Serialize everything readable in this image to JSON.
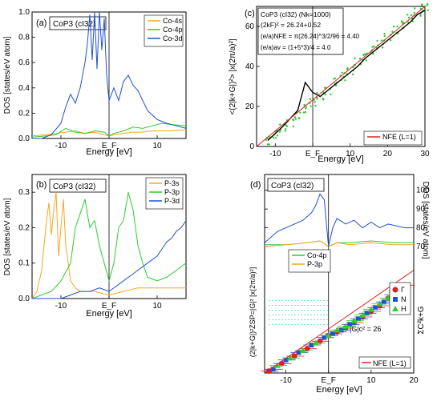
{
  "colors": {
    "orange": "#f5a623",
    "green": "#2ecc2e",
    "blue": "#1f4fd6",
    "black": "#000000",
    "red": "#e02020",
    "cyan": "#33c4e0"
  },
  "chart_data": [
    {
      "panel": "(a)",
      "type": "line",
      "tag": "CoP3 (cI32)",
      "xlabel": "Energy [eV]",
      "ylabel": "DOS [states/eV atom]",
      "xlim": [
        -16,
        16
      ],
      "ylim": [
        0,
        1.0
      ],
      "xticks": [
        -10,
        0,
        10
      ],
      "xtick_labels": [
        "-10",
        "E_F",
        "10"
      ],
      "yticks": [
        0,
        0.2,
        0.4,
        0.6,
        0.8,
        1.0
      ],
      "ytick_labels": [
        "0.0",
        "0.2",
        "0.4",
        "0.6",
        "0.8",
        "1.0"
      ],
      "legend": "top-right",
      "series": [
        {
          "name": "Co-4s",
          "color": "#f5a623",
          "x": [
            -16,
            -13,
            -11,
            -9,
            -7,
            -5,
            -3,
            -1,
            0,
            1,
            3,
            5,
            7,
            9,
            11,
            13,
            16
          ],
          "y": [
            0.02,
            0.03,
            0.04,
            0.05,
            0.06,
            0.04,
            0.05,
            0.03,
            0.02,
            0.03,
            0.04,
            0.05,
            0.05,
            0.06,
            0.06,
            0.06,
            0.07
          ]
        },
        {
          "name": "Co-4p",
          "color": "#2ecc2e",
          "x": [
            -16,
            -13,
            -11,
            -9,
            -7,
            -5,
            -3,
            -1,
            0,
            1,
            3,
            5,
            7,
            9,
            11,
            13,
            16
          ],
          "y": [
            0.01,
            0.02,
            0.03,
            0.08,
            0.05,
            0.04,
            0.06,
            0.05,
            0.02,
            0.04,
            0.06,
            0.09,
            0.08,
            0.1,
            0.12,
            0.11,
            0.1
          ]
        },
        {
          "name": "Co-3d",
          "color": "#1f4fd6",
          "x": [
            -16,
            -14,
            -12,
            -10,
            -9,
            -8,
            -7,
            -6,
            -5,
            -4.5,
            -4,
            -3.5,
            -3,
            -2.5,
            -2,
            -1.5,
            -1,
            -0.5,
            0,
            0.5,
            1,
            2,
            3,
            4,
            5,
            6,
            7,
            8,
            10,
            12,
            14,
            16
          ],
          "y": [
            0.0,
            0.0,
            0.03,
            0.12,
            0.25,
            0.35,
            0.28,
            0.4,
            0.6,
            0.75,
            0.98,
            0.62,
            1.0,
            0.55,
            1.0,
            0.7,
            0.95,
            0.5,
            0.3,
            0.35,
            0.4,
            0.3,
            0.45,
            0.5,
            0.42,
            0.38,
            0.3,
            0.22,
            0.15,
            0.12,
            0.1,
            0.08
          ]
        }
      ]
    },
    {
      "panel": "(b)",
      "type": "line",
      "tag": "CoP3 (cI32)",
      "xlabel": "Energy [eV]",
      "ylabel": "DOS [states/eV atom]",
      "xlim": [
        -16,
        16
      ],
      "ylim": [
        0,
        0.35
      ],
      "xticks": [
        -10,
        0,
        10
      ],
      "xtick_labels": [
        "-10",
        "E_F",
        "10"
      ],
      "yticks": [
        0,
        0.1,
        0.2,
        0.3
      ],
      "ytick_labels": [
        "0.0",
        "0.1",
        "0.2",
        "0.3"
      ],
      "legend": "top-right",
      "series": [
        {
          "name": "P-3s",
          "color": "#f5a623",
          "x": [
            -16,
            -15,
            -14,
            -13.5,
            -13,
            -12.5,
            -12,
            -11.5,
            -11,
            -10.5,
            -10,
            -9.5,
            -9,
            -8.5,
            -8,
            -7,
            -6,
            -5,
            -3,
            0,
            3,
            6,
            9,
            12,
            16
          ],
          "y": [
            0.0,
            0.02,
            0.08,
            0.15,
            0.22,
            0.27,
            0.18,
            0.25,
            0.3,
            0.12,
            0.2,
            0.28,
            0.15,
            0.1,
            0.05,
            0.03,
            0.02,
            0.02,
            0.02,
            0.01,
            0.02,
            0.03,
            0.03,
            0.03,
            0.03
          ]
        },
        {
          "name": "P-3p",
          "color": "#2ecc2e",
          "x": [
            -16,
            -12,
            -10,
            -8,
            -7,
            -6,
            -5,
            -4,
            -3,
            -2,
            -1,
            0,
            1,
            2,
            3,
            4,
            5,
            6,
            7,
            8,
            10,
            12,
            14,
            16
          ],
          "y": [
            0.0,
            0.02,
            0.05,
            0.1,
            0.2,
            0.24,
            0.28,
            0.2,
            0.22,
            0.15,
            0.1,
            0.05,
            0.1,
            0.2,
            0.22,
            0.3,
            0.25,
            0.15,
            0.1,
            0.06,
            0.05,
            0.06,
            0.08,
            0.1
          ]
        },
        {
          "name": "P-3d",
          "color": "#1f4fd6",
          "x": [
            -16,
            -12,
            -10,
            -8,
            -6,
            -4,
            -2,
            0,
            2,
            4,
            6,
            8,
            10,
            11,
            12,
            13,
            14,
            15,
            16
          ],
          "y": [
            0.0,
            0.0,
            0.0,
            0.01,
            0.02,
            0.02,
            0.03,
            0.02,
            0.04,
            0.06,
            0.08,
            0.1,
            0.12,
            0.14,
            0.16,
            0.17,
            0.19,
            0.2,
            0.22
          ]
        }
      ]
    },
    {
      "panel": "(c)",
      "type": "scatter",
      "xlabel": "Energy [eV]",
      "ylabel": "<(2|k+G|)²> [x(2π/a)²]",
      "xlim": [
        -15,
        30
      ],
      "ylim": [
        0,
        70
      ],
      "xticks": [
        -10,
        0,
        10,
        20,
        30
      ],
      "xtick_labels": [
        "-10",
        "E_F",
        "10",
        "20",
        "30"
      ],
      "yticks": [
        0,
        20,
        40,
        60
      ],
      "ytick_labels": [
        "0",
        "20",
        "40",
        "60"
      ],
      "annotations": [
        "CoP3 (cI32) (Nk=1000)",
        "(2kF)² = 26.24+0.52",
        "(e/a)NFE = π(26.24)^3/2/96 = 4.40",
        "(e/a)av = (1+5*3)/4 = 4.0"
      ],
      "legend": "bottom-right",
      "series": [
        {
          "name": "",
          "color": "#2ecc2e",
          "kind": "points",
          "x": [
            -12,
            -10,
            -8,
            -6,
            -4,
            -2,
            0,
            2,
            4,
            6,
            8,
            10,
            12,
            14,
            16,
            18,
            20,
            22,
            24,
            26,
            28,
            30
          ],
          "y": [
            3,
            6,
            9,
            12,
            15,
            19,
            22,
            25,
            28,
            32,
            35,
            38,
            42,
            45,
            48,
            51,
            55,
            58,
            61,
            64,
            67,
            70
          ]
        },
        {
          "name": "",
          "color": "#000000",
          "kind": "line",
          "x": [
            -12,
            -8,
            -6,
            -4,
            -2,
            0,
            2,
            4,
            6,
            8,
            10,
            12,
            14,
            16,
            18,
            20,
            22,
            24,
            26,
            28,
            30
          ],
          "y": [
            3,
            10,
            14,
            18,
            32,
            27,
            25,
            28,
            31,
            34,
            37,
            40,
            44,
            47,
            50,
            53,
            56,
            59,
            62,
            66,
            68
          ]
        },
        {
          "name": "NFE (L=1)",
          "color": "#e02020",
          "kind": "line",
          "x": [
            -15,
            30
          ],
          "y": [
            0,
            70
          ]
        }
      ]
    },
    {
      "panel": "(d)",
      "type": "line",
      "tag": "CoP3 (cI32)",
      "xlabel": "Energy [eV]",
      "ylabel": "(2|k+G|)²ZSP=|G|² [x(2π/a)²]",
      "ylabel_right_top": "DOS [states/eV atom]",
      "ylabel_right_bottom": "ΣC²k+G",
      "xlim": [
        -15,
        20
      ],
      "ylim": [
        0,
        105
      ],
      "xticks": [
        -10,
        0,
        10,
        20
      ],
      "xtick_labels": [
        "-10",
        "E_F",
        "10",
        "20"
      ],
      "yticks": [
        70,
        80,
        90,
        100
      ],
      "ytick_labels": [
        "70",
        "80",
        "90",
        "100"
      ],
      "annotation": "|G|c² = 26",
      "legend_top": [
        "Co-4p",
        "P-3p"
      ],
      "legend_markers": [
        "Γ",
        "N",
        "H"
      ],
      "legend_bottom": "NFE (L=1)",
      "series": [
        {
          "name": "Co-4p",
          "color": "#2ecc2e",
          "x": [
            -15,
            -10,
            -5,
            -2,
            0,
            2,
            5,
            10,
            15,
            20
          ],
          "y": [
            71,
            71,
            72,
            73,
            70,
            72,
            72,
            73,
            72,
            72
          ]
        },
        {
          "name": "P-3p",
          "color": "#f5a623",
          "x": [
            -15,
            -10,
            -5,
            -2,
            0,
            2,
            5,
            10,
            15,
            20
          ],
          "y": [
            70,
            71,
            72,
            73,
            70,
            72,
            71,
            72,
            71,
            71
          ]
        },
        {
          "name": "",
          "color": "#1f4fd6",
          "x": [
            -15,
            -12,
            -10,
            -8,
            -6,
            -4,
            -3,
            -2,
            -1,
            0,
            1,
            2,
            4,
            6,
            8,
            10,
            12,
            14,
            16,
            18,
            20
          ],
          "y": [
            72,
            78,
            80,
            82,
            84,
            88,
            92,
            98,
            95,
            70,
            80,
            85,
            82,
            84,
            80,
            83,
            80,
            82,
            81,
            80,
            80
          ]
        },
        {
          "name": "Γ",
          "color": "#e02020",
          "kind": "points",
          "x": [
            -14,
            -11,
            -8,
            -5,
            -2,
            0,
            2,
            4,
            6,
            8,
            10,
            12,
            14,
            16,
            18
          ],
          "y": [
            1,
            5,
            9,
            13,
            17,
            20,
            22,
            24,
            27,
            30,
            33,
            36,
            40,
            44,
            47
          ]
        },
        {
          "name": "N",
          "color": "#1f4fd6",
          "kind": "points",
          "x": [
            -13,
            -10,
            -7,
            -4,
            -1,
            1,
            3,
            5,
            7,
            9,
            11,
            13,
            15,
            17
          ],
          "y": [
            2,
            7,
            11,
            15,
            19,
            21,
            23,
            26,
            29,
            32,
            35,
            38,
            42,
            45
          ]
        },
        {
          "name": "H",
          "color": "#2ecc2e",
          "kind": "points",
          "x": [
            -12,
            -9,
            -6,
            -3,
            0,
            2,
            4,
            6,
            8,
            10,
            12,
            14,
            16
          ],
          "y": [
            4,
            8,
            12,
            16,
            20,
            23,
            25,
            28,
            31,
            34,
            37,
            40,
            43
          ]
        }
      ]
    }
  ]
}
